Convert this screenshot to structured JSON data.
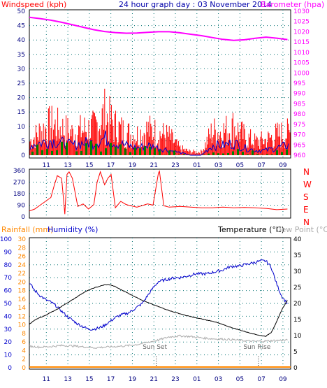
{
  "header": {
    "left_label": "Windspeed (kph)",
    "title": "24 hour graph day : 03 November 2014",
    "right_label": "Barometer (hpa)"
  },
  "colors": {
    "wind": "#ff0000",
    "gust_detail": "#0000cc",
    "gust_green": "#008000",
    "barometer": "#ff00ff",
    "humidity": "#0000cc",
    "temperature": "#000000",
    "dew_point": "#aaaaaa",
    "rainfall": "#ff8800",
    "axis_label_wind": "#ff0000",
    "axis_label_dir": "#ff0000",
    "grid": "#007070",
    "plot_bg": "#ffffff"
  },
  "x_axis": {
    "tick_labels": [
      "11",
      "13",
      "15",
      "17",
      "19",
      "21",
      "23",
      "01",
      "03",
      "05",
      "07",
      "09"
    ],
    "hours_from_start": [
      1.58,
      3.58,
      5.58,
      7.58,
      9.58,
      11.58,
      13.58,
      15.58,
      17.58,
      19.58,
      21.58,
      23.58
    ],
    "range": [
      0,
      24.3
    ]
  },
  "chart_data": [
    {
      "type": "line",
      "title": "24 hour graph day : 03 November 2014",
      "ylabel": "Windspeed (kph)",
      "y2label": "Barometer (hpa)",
      "ylim": [
        0,
        50
      ],
      "y2lim": [
        960,
        1030
      ],
      "y_ticks": [
        0,
        5,
        10,
        15,
        20,
        25,
        30,
        35,
        40,
        45,
        50
      ],
      "y2_ticks": [
        960,
        965,
        970,
        975,
        980,
        985,
        990,
        995,
        1000,
        1005,
        1010,
        1015,
        1020,
        1025,
        1030
      ],
      "series": [
        {
          "name": "Barometer (hpa)",
          "axis": "right",
          "x": [
            0,
            1,
            2,
            3,
            4,
            5,
            6,
            7,
            8,
            9,
            10,
            11,
            12,
            13,
            14,
            15,
            16,
            17,
            18,
            19,
            20,
            21,
            22,
            23,
            24
          ],
          "values": [
            1027,
            1026.4,
            1025.6,
            1024.6,
            1023.4,
            1022.2,
            1021,
            1020.1,
            1019.6,
            1019.3,
            1019.4,
            1019.7,
            1020,
            1020,
            1019.5,
            1018.8,
            1018.1,
            1017.2,
            1016.3,
            1015.8,
            1016.1,
            1016.8,
            1017.4,
            1016.9,
            1016.2
          ]
        },
        {
          "name": "Windspeed (kph)",
          "axis": "left",
          "x": [
            0,
            1,
            2,
            3,
            4,
            5,
            6,
            7,
            8,
            9,
            10,
            11,
            12,
            13,
            14,
            15,
            16,
            17,
            18,
            19,
            20,
            21,
            22,
            23,
            24
          ],
          "values": [
            8,
            14,
            18,
            16,
            13,
            15,
            16,
            24,
            17,
            13,
            12,
            15,
            13,
            11,
            4,
            2,
            2,
            14,
            14,
            17,
            11,
            8,
            9,
            12,
            13
          ]
        },
        {
          "name": "Gust detail",
          "axis": "left",
          "x": [
            0,
            1,
            2,
            3,
            4,
            5,
            6,
            7,
            8,
            9,
            10,
            11,
            12,
            13,
            14,
            15,
            16,
            17,
            18,
            19,
            20,
            21,
            22,
            23,
            24
          ],
          "values": [
            4,
            5,
            6,
            5,
            4,
            5,
            5,
            7,
            5,
            4,
            3,
            4,
            3,
            2,
            1,
            0,
            0,
            4,
            4,
            5,
            3,
            2,
            2,
            3,
            4
          ]
        }
      ]
    },
    {
      "type": "line",
      "ylabel_compass": [
        "N",
        "W",
        "S",
        "E",
        "N"
      ],
      "ylim": [
        0,
        360
      ],
      "y_ticks": [
        0,
        90,
        180,
        270,
        360
      ],
      "series": [
        {
          "name": "Wind direction",
          "x": [
            0,
            0.5,
            1,
            1.5,
            2,
            2.3,
            2.6,
            3,
            3.3,
            3.5,
            3.7,
            4,
            4.5,
            5,
            5.5,
            6,
            6.3,
            6.6,
            7,
            7.3,
            7.6,
            8,
            8.5,
            9,
            10,
            11,
            11.5,
            12,
            12.1,
            12.5,
            13,
            14,
            15,
            16,
            17,
            18,
            19,
            20,
            21,
            22,
            23,
            24
          ],
          "values": [
            45,
            60,
            90,
            120,
            150,
            240,
            320,
            300,
            20,
            330,
            350,
            300,
            80,
            100,
            60,
            95,
            270,
            350,
            250,
            300,
            330,
            70,
            120,
            95,
            75,
            100,
            90,
            340,
            355,
            85,
            75,
            80,
            75,
            70,
            70,
            75,
            70,
            72,
            70,
            65,
            55,
            60
          ]
        }
      ]
    },
    {
      "type": "line",
      "title": "",
      "ylabel": "Rainfall (mm)",
      "ylabel2": "Humidity (%)",
      "y2label": "Temperature (°C)",
      "y2label2": "Dew Point (°C)",
      "ylim_humidity": [
        0,
        100
      ],
      "ylim_rainfall": [
        0,
        30
      ],
      "ylim_temperature": [
        0,
        40
      ],
      "humidity_ticks": [
        0,
        10,
        20,
        30,
        40,
        50,
        60,
        70,
        80,
        90,
        100
      ],
      "rainfall_ticks": [
        0,
        2,
        4,
        6,
        8,
        10,
        12,
        14,
        16,
        18,
        20,
        22,
        24,
        26,
        28,
        30
      ],
      "temperature_ticks": [
        0,
        5,
        10,
        15,
        20,
        25,
        30,
        35,
        40
      ],
      "annotations": [
        {
          "text": "Sun Set",
          "x": 11.8
        },
        {
          "text": "Sun Rise",
          "x": 21.3
        }
      ],
      "series": [
        {
          "name": "Humidity (%)",
          "axis": "humidity",
          "x": [
            0,
            0.5,
            1,
            1.5,
            2,
            2.5,
            3,
            3.5,
            4,
            4.5,
            5,
            5.5,
            6,
            6.5,
            7,
            7.5,
            8,
            8.5,
            9,
            9.5,
            10,
            10.5,
            11,
            11.5,
            12,
            12.5,
            13,
            13.5,
            14,
            14.5,
            15,
            15.5,
            16,
            16.5,
            17,
            17.5,
            18,
            18.5,
            19,
            19.5,
            20,
            20.5,
            21,
            21.5,
            22,
            22.5,
            23,
            23.5,
            24
          ],
          "values": [
            66,
            60,
            56,
            53,
            51,
            48,
            44,
            40,
            37,
            34,
            32,
            30,
            30,
            31,
            33,
            36,
            39,
            41,
            42,
            44,
            47,
            50,
            56,
            62,
            67,
            68,
            69,
            70,
            70,
            71,
            72,
            73,
            73,
            73,
            74,
            75,
            76,
            78,
            79,
            79,
            80,
            81,
            82,
            83,
            83,
            78,
            65,
            55,
            50
          ]
        },
        {
          "name": "Temperature (°C)",
          "axis": "temperature",
          "x": [
            0,
            0.5,
            1,
            1.5,
            2,
            2.5,
            3,
            3.5,
            4,
            4.5,
            5,
            5.5,
            6,
            6.5,
            7,
            7.5,
            8,
            8.5,
            9,
            9.5,
            10,
            10.5,
            11,
            11.5,
            12,
            12.5,
            13,
            13.5,
            14,
            14.5,
            15,
            15.5,
            16,
            16.5,
            17,
            17.5,
            18,
            18.5,
            19,
            19.5,
            20,
            20.5,
            21,
            21.5,
            22,
            22.5,
            23,
            23.5,
            24
          ],
          "values": [
            13.5,
            14.8,
            15.6,
            16.3,
            17.2,
            18,
            19.1,
            20.1,
            21.1,
            22.2,
            23.3,
            24.1,
            24.8,
            25.3,
            25.8,
            25.8,
            25.2,
            24.3,
            23.5,
            22.6,
            21.8,
            21,
            20.3,
            19.6,
            19,
            18.4,
            17.8,
            17.2,
            16.8,
            16.3,
            15.9,
            15.5,
            15.2,
            14.8,
            14.5,
            14,
            13.4,
            12.8,
            12.3,
            11.8,
            11.3,
            10.8,
            10.4,
            10,
            9.8,
            11,
            14.3,
            18.2,
            21
          ]
        },
        {
          "name": "Dew Point (°C)",
          "axis": "temperature",
          "x": [
            0,
            1,
            2,
            3,
            4,
            5,
            6,
            7,
            8,
            9,
            10,
            11,
            12,
            13,
            14,
            15,
            16,
            17,
            18,
            19,
            20,
            21,
            22,
            23,
            24
          ],
          "values": [
            6.7,
            6.4,
            6.6,
            6.9,
            6.8,
            6.5,
            6.2,
            6.4,
            6.6,
            6.8,
            7.2,
            7.9,
            8.6,
            9.6,
            9.9,
            9.7,
            9.3,
            9.0,
            8.9,
            8.7,
            8.4,
            8.2,
            8.3,
            8.5,
            8.6
          ]
        },
        {
          "name": "Rainfall (mm)",
          "axis": "rainfall",
          "x": [
            0,
            24
          ],
          "values": [
            0,
            0
          ]
        }
      ]
    }
  ],
  "panel2": {
    "compass": [
      "N",
      "W",
      "S",
      "E",
      "N"
    ]
  },
  "panel3": {
    "rainfall_label": "Rainfall (mm)",
    "humidity_label": "Humidity (%)",
    "temperature_label": "Temperature (°C)",
    "dew_label": "Dew Point (°C)",
    "sunset_label": "Sun Set",
    "sunrise_label": "Sun Rise"
  }
}
